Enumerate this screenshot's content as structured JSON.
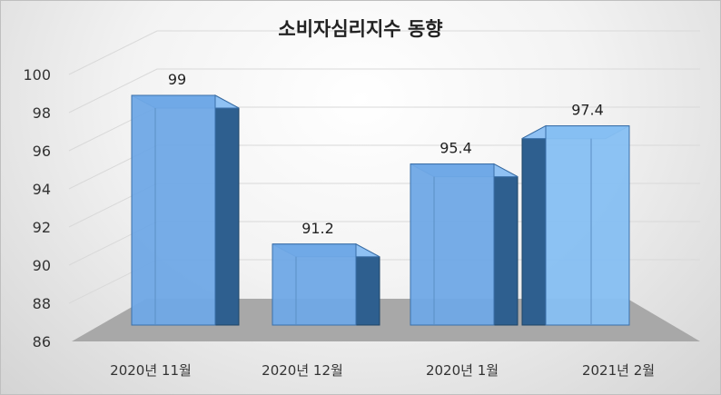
{
  "chart_data": {
    "type": "bar",
    "title": "소비자심리지수 동향",
    "categories": [
      "2020년 11월",
      "2020년 12월",
      "2020년 1월",
      "2021년 2월"
    ],
    "values": [
      99,
      91.2,
      95.4,
      97.4
    ],
    "data_labels": [
      "99",
      "91.2",
      "95.4",
      "97.4"
    ],
    "ylim": [
      86,
      100
    ],
    "yticks": [
      86,
      88,
      90,
      92,
      94,
      96,
      98,
      100
    ],
    "grid": true,
    "legend": "none",
    "colors": {
      "bar_front": "#6fa8e6",
      "bar_side": "#2e5f8f",
      "bar_top": "#8fc1f3",
      "floor": "#a8a8a8"
    }
  }
}
